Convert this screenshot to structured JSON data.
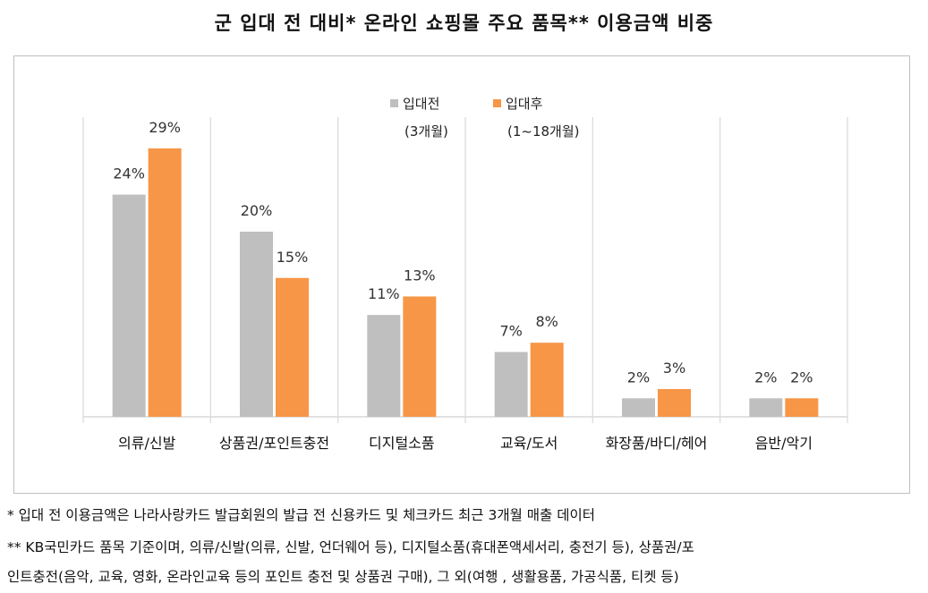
{
  "title": "군 입대 전 대비* 온라인 쇼핑몰 주요 품목** 이용금액 비중",
  "legend": [
    {
      "label": "입대전",
      "sublabel": "(3개월)"
    },
    {
      "label": "입대후",
      "sublabel": "(1~18개월)"
    }
  ],
  "colors": {
    "before": "#bfbfbf",
    "after": "#f79646",
    "gridline": "#d9d9d9"
  },
  "chart_data": {
    "type": "bar",
    "title": "군 입대 전 대비* 온라인 쇼핑몰 주요 품목** 이용금액 비중",
    "categories": [
      "의류/신발",
      "상품권/포인트충전",
      "디지털소품",
      "교육/도서",
      "화장품/바디/헤어",
      "음반/악기"
    ],
    "series": [
      {
        "name": "입대전",
        "values": [
          24,
          20,
          11,
          7,
          2,
          2
        ],
        "labels": [
          "24%",
          "20%",
          "11%",
          "7%",
          "2%",
          "2%"
        ]
      },
      {
        "name": "입대후",
        "values": [
          29,
          15,
          13,
          8,
          3,
          2
        ],
        "labels": [
          "29%",
          "15%",
          "13%",
          "8%",
          "3%",
          "2%"
        ]
      }
    ],
    "unit": "%",
    "ylim": [
      0,
      35
    ],
    "grid": false,
    "legend_position": "top-center"
  },
  "footnotes": [
    "* 입대 전 이용금액은 나라사랑카드 발급회원의 발급 전 신용카드 및 체크카드 최근 3개월 매출 데이터",
    "** KB국민카드 품목 기준이며, 의류/신발(의류, 신발, 언더웨어 등), 디지털소품(휴대폰액세서리, 충전기 등), 상품권/포",
    "인트충전(음악, 교육, 영화, 온라인교육 등의 포인트 충전 및 상품권 구매), 그 외(여행 , 생활용품, 가공식품, 티켓 등)"
  ]
}
